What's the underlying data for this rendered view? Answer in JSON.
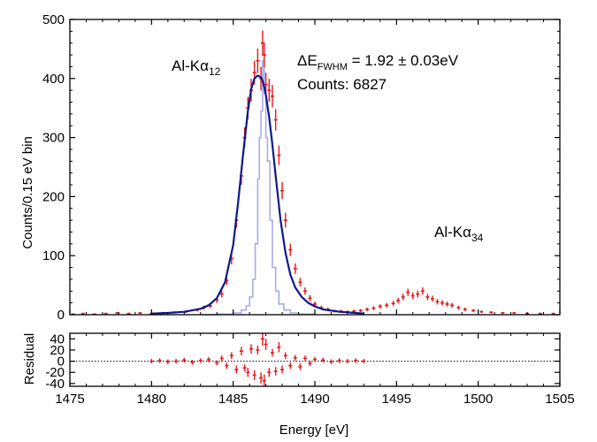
{
  "chart_data": [
    {
      "type": "line",
      "panel": "main",
      "xlabel": "",
      "ylabel": "Counts/0.15 eV bin",
      "xlim": [
        1475,
        1505
      ],
      "ylim": [
        0,
        500
      ],
      "xticks": [
        1475,
        1480,
        1485,
        1490,
        1495,
        1500,
        1505
      ],
      "yticks": [
        0,
        100,
        200,
        300,
        400,
        500
      ],
      "grid": false,
      "annotations": {
        "peak_main": "Al-Kα",
        "peak_main_sub": "12",
        "peak_minor": "Al-Kα",
        "peak_minor_sub": "34",
        "fwhm_delta": "ΔE",
        "fwhm_sub": "FWHM",
        "fwhm_value": " = 1.92 ± 0.03eV",
        "counts": "Counts: 6827"
      },
      "colors": {
        "data": "#e8191e",
        "fit": "#0a1a8c",
        "response": "#a9acea"
      },
      "series": [
        {
          "role": "data",
          "style": "points-with-errorbars",
          "x": [
            1475.2,
            1475.8,
            1476.5,
            1477.2,
            1477.9,
            1478.6,
            1479.3,
            1480.0,
            1480.7,
            1481.4,
            1482.1,
            1482.8,
            1483.2,
            1483.6,
            1484.0,
            1484.3,
            1484.6,
            1484.9,
            1485.2,
            1485.5,
            1485.7,
            1485.9,
            1486.1,
            1486.3,
            1486.5,
            1486.7,
            1486.8,
            1486.9,
            1487.0,
            1487.2,
            1487.4,
            1487.6,
            1487.8,
            1488.0,
            1488.2,
            1488.5,
            1488.8,
            1489.1,
            1489.4,
            1489.7,
            1490.0,
            1490.4,
            1490.8,
            1491.2,
            1491.6,
            1492.0,
            1492.4,
            1492.8,
            1493.2,
            1493.6,
            1494.0,
            1494.4,
            1494.8,
            1495.1,
            1495.4,
            1495.7,
            1496.0,
            1496.3,
            1496.6,
            1496.9,
            1497.2,
            1497.5,
            1497.8,
            1498.1,
            1498.4,
            1498.8,
            1499.2,
            1499.7,
            1500.2,
            1500.8,
            1501.5,
            1502.2,
            1503.0,
            1503.8,
            1504.6
          ],
          "y": [
            1,
            2,
            1,
            2,
            3,
            2,
            3,
            2,
            3,
            4,
            5,
            8,
            12,
            15,
            25,
            35,
            58,
            95,
            160,
            235,
            300,
            350,
            380,
            410,
            430,
            400,
            460,
            440,
            390,
            380,
            370,
            330,
            270,
            210,
            160,
            110,
            78,
            55,
            40,
            28,
            18,
            12,
            9,
            6,
            6,
            5,
            6,
            7,
            9,
            11,
            14,
            16,
            19,
            24,
            30,
            38,
            32,
            35,
            40,
            30,
            27,
            22,
            20,
            18,
            16,
            12,
            9,
            7,
            5,
            4,
            3,
            3,
            2,
            2,
            2
          ]
        },
        {
          "role": "fit",
          "style": "line",
          "x": [
            1480.0,
            1481.0,
            1482.0,
            1483.0,
            1483.5,
            1484.0,
            1484.5,
            1485.0,
            1485.3,
            1485.6,
            1485.9,
            1486.1,
            1486.3,
            1486.5,
            1486.7,
            1486.8,
            1486.9,
            1487.0,
            1487.2,
            1487.4,
            1487.6,
            1487.9,
            1488.2,
            1488.5,
            1488.8,
            1489.2,
            1489.6,
            1490.0,
            1490.5,
            1491.0,
            1491.5,
            1492.0,
            1492.5,
            1493.0
          ],
          "y": [
            2,
            3,
            5,
            10,
            16,
            28,
            55,
            118,
            190,
            270,
            345,
            382,
            400,
            405,
            402,
            396,
            386,
            372,
            335,
            288,
            235,
            160,
            105,
            68,
            46,
            30,
            20,
            14,
            9,
            7,
            5,
            4,
            3,
            2
          ]
        },
        {
          "role": "response",
          "style": "step",
          "x": [
            1483.0,
            1484.0,
            1485.0,
            1485.5,
            1485.8,
            1486.0,
            1486.2,
            1486.35,
            1486.5,
            1486.6,
            1486.7,
            1486.8,
            1486.9,
            1487.0,
            1487.1,
            1487.25,
            1487.4,
            1487.6,
            1487.8,
            1488.1,
            1488.5,
            1489.0,
            1490.0
          ],
          "y": [
            0,
            1,
            3,
            8,
            15,
            30,
            60,
            120,
            230,
            300,
            345,
            430,
            375,
            300,
            260,
            160,
            80,
            40,
            18,
            8,
            3,
            1,
            0
          ]
        },
        {
          "role": "baseline",
          "style": "dotted",
          "x": [
            1475,
            1505
          ],
          "y": [
            0,
            0
          ]
        }
      ]
    },
    {
      "type": "scatter",
      "panel": "residual",
      "xlabel": "Energy [eV]",
      "ylabel": "Residual",
      "xlim": [
        1475,
        1505
      ],
      "ylim": [
        -45,
        50
      ],
      "xticks": [
        1475,
        1480,
        1485,
        1490,
        1495,
        1500,
        1505
      ],
      "yticks": [
        -40,
        -20,
        0,
        20,
        40
      ],
      "ytick_labels": [
        "-40",
        "-20",
        "0",
        "20",
        "40"
      ],
      "grid": false,
      "series": [
        {
          "role": "residual",
          "x": [
            1480.0,
            1480.5,
            1481.0,
            1481.5,
            1482.0,
            1482.5,
            1483.0,
            1483.5,
            1484.0,
            1484.3,
            1484.6,
            1484.9,
            1485.2,
            1485.5,
            1485.7,
            1485.9,
            1486.1,
            1486.3,
            1486.5,
            1486.7,
            1486.8,
            1486.9,
            1487.0,
            1487.2,
            1487.4,
            1487.6,
            1487.8,
            1488.0,
            1488.2,
            1488.5,
            1488.8,
            1489.1,
            1489.4,
            1489.7,
            1490.0,
            1490.5,
            1491.0,
            1491.5,
            1492.0,
            1492.5,
            1493.0
          ],
          "y": [
            0,
            1,
            -1,
            0,
            2,
            -2,
            1,
            3,
            -3,
            5,
            -8,
            10,
            -15,
            18,
            -12,
            -20,
            22,
            -25,
            20,
            -30,
            40,
            -35,
            30,
            -20,
            15,
            -18,
            25,
            -15,
            10,
            -8,
            6,
            -10,
            5,
            -4,
            3,
            2,
            -1,
            1,
            0,
            1,
            0
          ]
        },
        {
          "role": "zero-line",
          "x": [
            1475,
            1505
          ],
          "y": [
            0,
            0
          ]
        }
      ]
    }
  ]
}
